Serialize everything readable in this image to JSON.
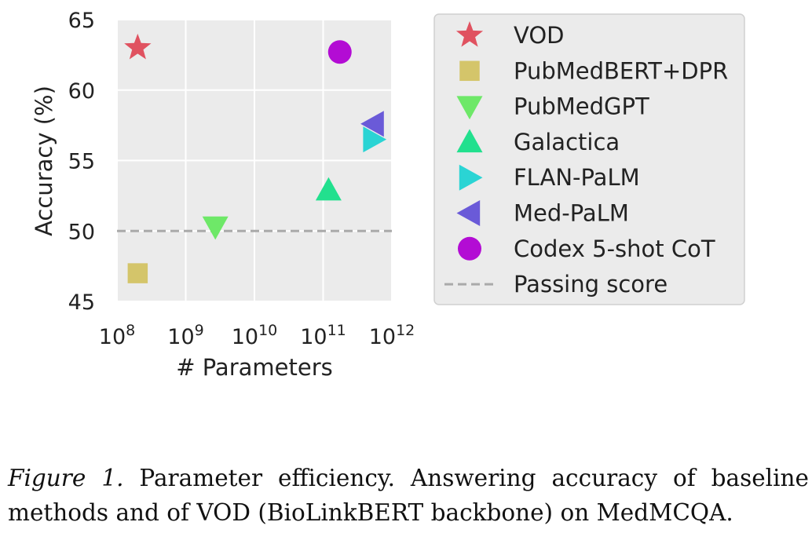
{
  "chart_data": {
    "type": "scatter",
    "xlabel": "# Parameters",
    "ylabel": "Accuracy (%)",
    "xscale": "log",
    "xlim": [
      100000000,
      1000000000000
    ],
    "ylim": [
      45,
      65
    ],
    "grid": true,
    "legend_position": "right, outside plot",
    "x_ticks": [
      {
        "base": "10",
        "exp": "8",
        "value": 100000000
      },
      {
        "base": "10",
        "exp": "9",
        "value": 1000000000
      },
      {
        "base": "10",
        "exp": "10",
        "value": 10000000000
      },
      {
        "base": "10",
        "exp": "11",
        "value": 100000000000
      },
      {
        "base": "10",
        "exp": "12",
        "value": 1000000000000
      }
    ],
    "y_ticks": [
      "45",
      "50",
      "55",
      "60",
      "65"
    ],
    "series": [
      {
        "name": "VOD",
        "marker": "star",
        "color": "#e05260",
        "x": 200000000,
        "y": 63.0
      },
      {
        "name": "PubMedBERT+DPR",
        "marker": "square",
        "color": "#d4c56a",
        "x": 200000000,
        "y": 47.0
      },
      {
        "name": "PubMedGPT",
        "marker": "triangle-down",
        "color": "#6ee868",
        "x": 2700000000,
        "y": 50.3
      },
      {
        "name": "Galactica",
        "marker": "triangle-up",
        "color": "#22e08e",
        "x": 120000000000,
        "y": 52.9
      },
      {
        "name": "FLAN-PaLM",
        "marker": "triangle-right",
        "color": "#2ad4d4",
        "x": 540000000000,
        "y": 56.5
      },
      {
        "name": "Med-PaLM",
        "marker": "triangle-left",
        "color": "#6a5ad8",
        "x": 540000000000,
        "y": 57.6
      },
      {
        "name": "Codex 5-shot CoT",
        "marker": "circle",
        "color": "#b30cd4",
        "x": 175000000000,
        "y": 62.7
      }
    ],
    "reference_lines": [
      {
        "name": "Passing score",
        "y": 50,
        "style": "dashed",
        "color": "#aaaaaa"
      }
    ]
  },
  "caption": {
    "label": "Figure 1.",
    "text": " Parameter efficiency.  Answering accuracy of baseline methods and of VOD (BioLinkBERT backbone) on MedMCQA."
  }
}
